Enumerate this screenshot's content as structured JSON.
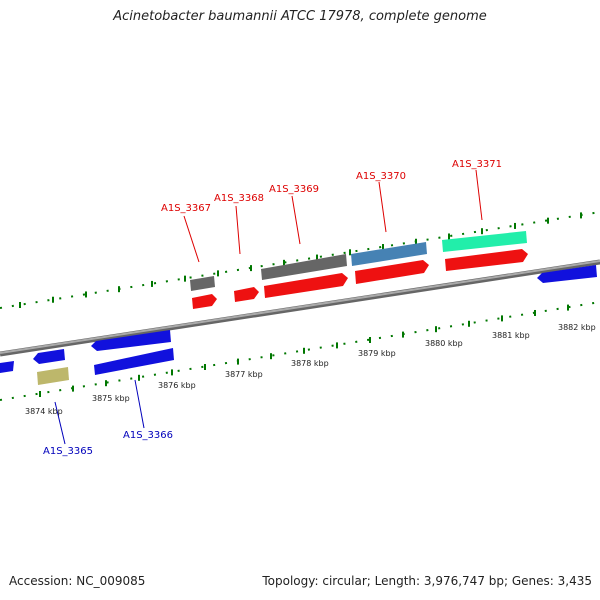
{
  "title": "Acinetobacter baumannii ATCC 17978, complete genome",
  "footer": {
    "accession": "Accession: NC_009085",
    "topology": "Topology: circular; Length: 3,976,747 bp; Genes: 3,435"
  },
  "colors": {
    "forward_label": "#dd0000",
    "reverse_label": "#0000bb",
    "tick": "#007700",
    "backbone": "#888888",
    "cds": "#ee1111",
    "cds_reverse": "#1111dd",
    "gene_gray": "#666666",
    "gene_steelblue": "#4682b4",
    "gene_aqua": "#22eeaa",
    "gene_khaki": "#bdb76b"
  },
  "scale": {
    "ticks": [
      "3874 kbp",
      "3875 kbp",
      "3876 kbp",
      "3877 kbp",
      "3878 kbp",
      "3879 kbp",
      "3880 kbp",
      "3881 kbp",
      "3882 kbp"
    ]
  },
  "features": {
    "forward": [
      {
        "label": "A1S_3367",
        "strand": "forward"
      },
      {
        "label": "A1S_3368",
        "strand": "forward"
      },
      {
        "label": "A1S_3369",
        "strand": "forward"
      },
      {
        "label": "A1S_3370",
        "strand": "forward"
      },
      {
        "label": "A1S_3371",
        "strand": "forward"
      }
    ],
    "reverse": [
      {
        "label": "A1S_3365",
        "strand": "reverse"
      },
      {
        "label": "A1S_3366",
        "strand": "reverse"
      }
    ]
  }
}
